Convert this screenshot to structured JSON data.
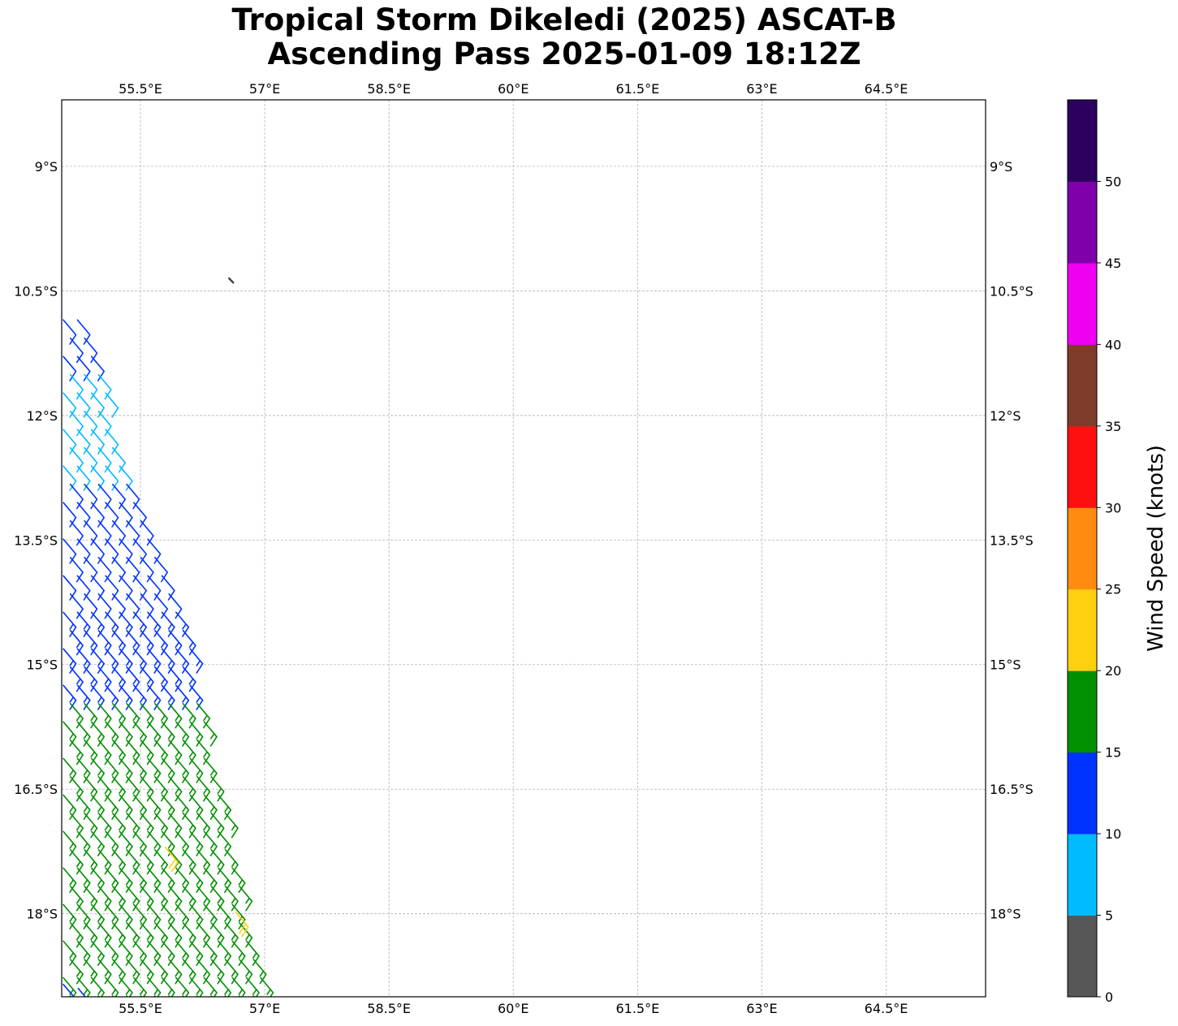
{
  "title": {
    "line1": "Tropical Storm Dikeledi (2025) ASCAT-B",
    "line2": "Ascending Pass 2025-01-09 18:12Z"
  },
  "chart_data": {
    "type": "map-wind-barbs",
    "projection": "PlateCarree",
    "extent": {
      "lon": [
        54.55,
        65.7
      ],
      "lat": [
        -19.0,
        -8.2
      ]
    },
    "lon_ticks": [
      {
        "value": 55.5,
        "label": "55.5°E"
      },
      {
        "value": 57.0,
        "label": "57°E"
      },
      {
        "value": 58.5,
        "label": "58.5°E"
      },
      {
        "value": 60.0,
        "label": "60°E"
      },
      {
        "value": 61.5,
        "label": "61.5°E"
      },
      {
        "value": 63.0,
        "label": "63°E"
      },
      {
        "value": 64.5,
        "label": "64.5°E"
      }
    ],
    "lat_ticks": [
      {
        "value": -9.0,
        "label": "9°S"
      },
      {
        "value": -10.5,
        "label": "10.5°S"
      },
      {
        "value": -12.0,
        "label": "12°S"
      },
      {
        "value": -13.5,
        "label": "13.5°S"
      },
      {
        "value": -15.0,
        "label": "15°S"
      },
      {
        "value": -16.5,
        "label": "16.5°S"
      },
      {
        "value": -18.0,
        "label": "18°S"
      }
    ],
    "grid": true,
    "land_feature": {
      "name": "island",
      "lon": [
        56.57,
        56.62
      ],
      "lat": [
        -10.35,
        -10.4
      ]
    },
    "swath": {
      "description": "ASCAT-B wind vectors along western edge of domain",
      "west_edge": [
        {
          "lon": 54.55,
          "lat": -10.8
        },
        {
          "lon": 54.55,
          "lat": -19.0
        }
      ],
      "east_edge": [
        {
          "lon": 54.75,
          "lat": -10.8
        },
        {
          "lon": 56.0,
          "lat": -14.3
        },
        {
          "lon": 57.0,
          "lat": -19.0
        }
      ],
      "row_spacing_deg": 0.22,
      "col_spacing_deg": 0.17,
      "wind_from_deg": 140,
      "speed_zones": [
        {
          "lat_max": -10.8,
          "lat_min": -11.5,
          "speed_kt": 12
        },
        {
          "lat_max": -11.5,
          "lat_min": -12.7,
          "speed_kt": 8
        },
        {
          "lat_max": -12.7,
          "lat_min": -14.3,
          "speed_kt": 12
        },
        {
          "lat_max": -14.3,
          "lat_min": -15.3,
          "speed_kt": 14,
          "transition_to_kt": 16
        },
        {
          "lat_max": -15.3,
          "lat_min": -19.0,
          "speed_kt": 17
        }
      ],
      "isolated_barbs": [
        {
          "lon": 55.8,
          "lat": -17.2,
          "speed_kt": 22
        },
        {
          "lon": 56.65,
          "lat": -17.98,
          "speed_kt": 22
        },
        {
          "lon": 54.57,
          "lat": -18.85,
          "speed_kt": 12
        },
        {
          "lon": 54.75,
          "lat": -18.9,
          "speed_kt": 12
        }
      ]
    },
    "colorbar": {
      "label": "Wind Speed (knots)",
      "bounds": [
        0,
        5,
        10,
        15,
        20,
        25,
        30,
        35,
        40,
        45,
        50,
        55
      ],
      "tick_values": [
        0,
        5,
        10,
        15,
        20,
        25,
        30,
        35,
        40,
        45,
        50
      ],
      "colors": [
        "#575757",
        "#00bbff",
        "#0033ff",
        "#009000",
        "#ffd010",
        "#ff8c10",
        "#ff1010",
        "#7f3c2a",
        "#f000f0",
        "#7f00aa",
        "#2d0060"
      ]
    }
  }
}
